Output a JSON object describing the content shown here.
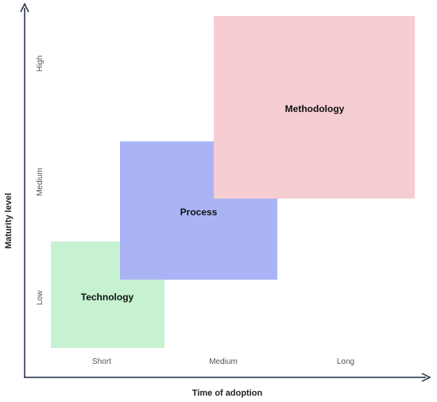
{
  "axes": {
    "x_title": "Time of adoption",
    "y_title": "Maturity level",
    "x_ticks": [
      "Short",
      "Medium",
      "Long"
    ],
    "y_ticks": [
      "Low",
      "Medium",
      "High"
    ],
    "axis_color": "#1f2a44"
  },
  "boxes": [
    {
      "label": "Technology",
      "color": "#c6f2d2"
    },
    {
      "label": "Process",
      "color": "#aab4f5"
    },
    {
      "label": "Methodology",
      "color": "#f5cdd2"
    }
  ]
}
